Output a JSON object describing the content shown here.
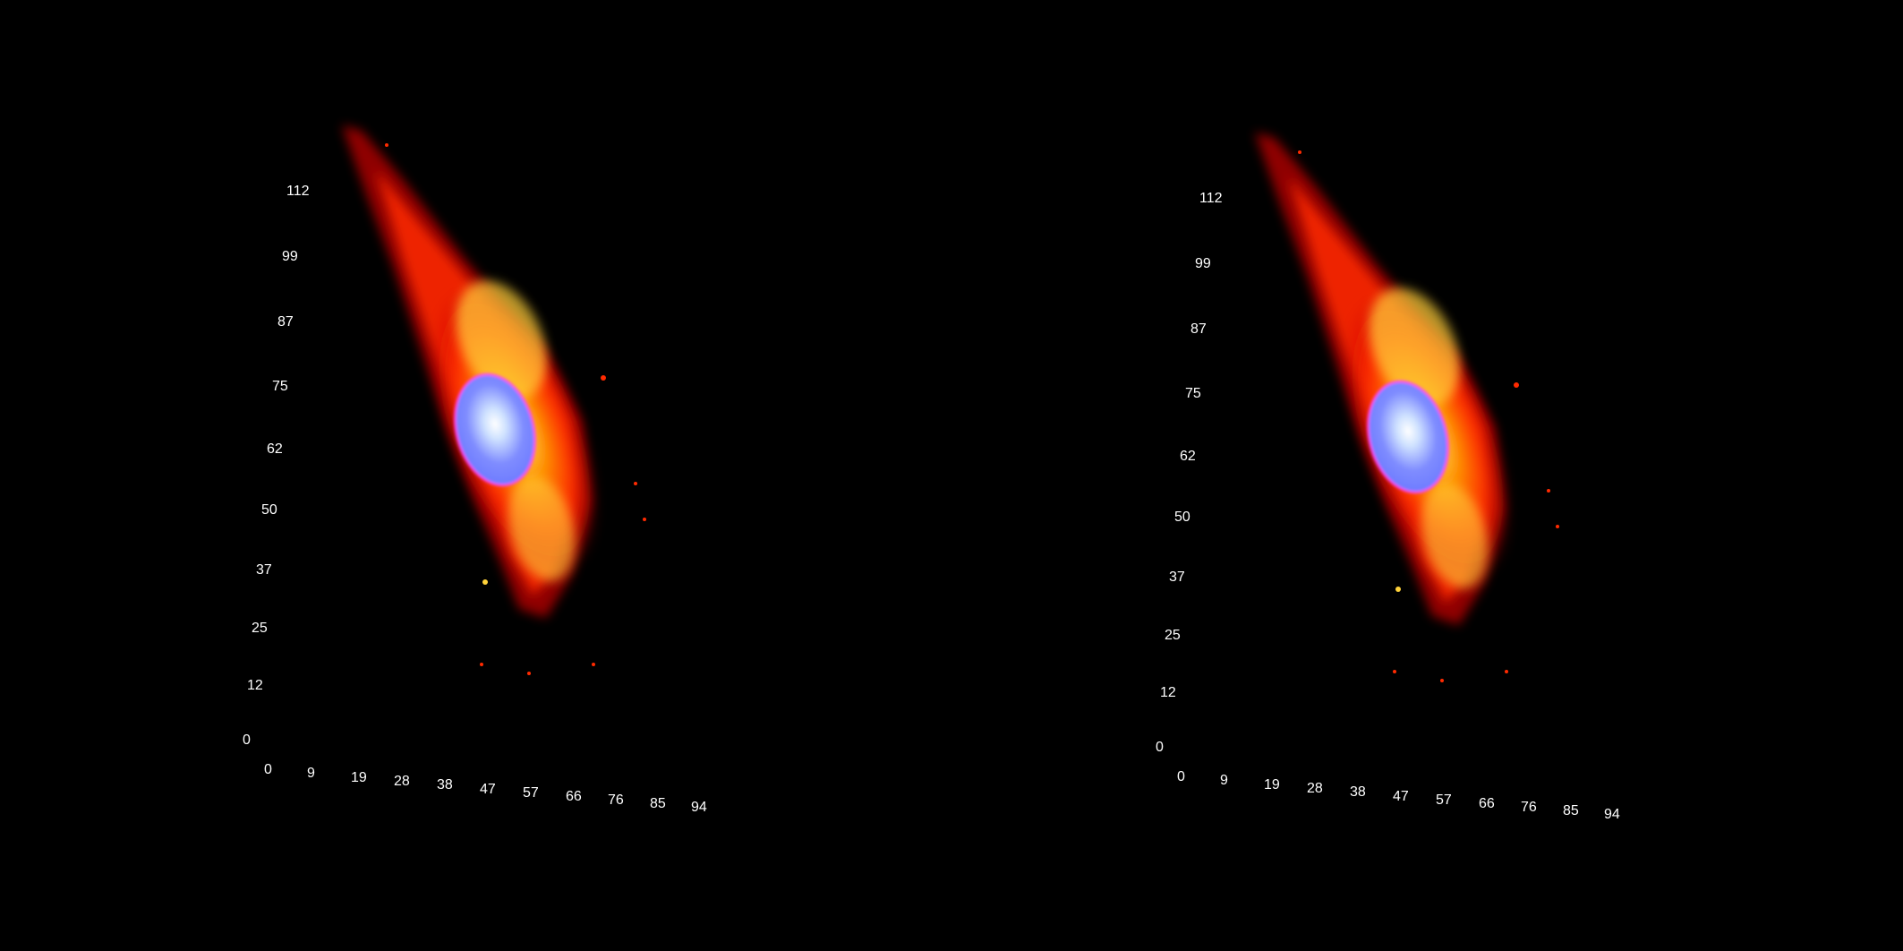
{
  "view": {
    "background": "#000000",
    "description_type": "stereo-pair-3d-render"
  },
  "colors": {
    "cytoplasm_outer": "#c00000",
    "cytoplasm_mid": "#ff2a00",
    "cytoplasm_bright": "#ff9a00",
    "cytoplasm_hot": "#fff27a",
    "nucleus_fill": "#6e7cff",
    "nucleus_core": "#e6f0ff",
    "nucleus_edge": "#ff3cff",
    "axis_label": "#ffffff"
  },
  "panels": [
    {
      "id": "left",
      "y_axis_ticks": [
        "112",
        "99",
        "87",
        "75",
        "62",
        "50",
        "37",
        "25",
        "12",
        "0"
      ],
      "x_axis_ticks": [
        "0",
        "9",
        "19",
        "28",
        "38",
        "47",
        "57",
        "66",
        "76",
        "85",
        "94"
      ]
    },
    {
      "id": "right",
      "y_axis_ticks": [
        "112",
        "99",
        "87",
        "75",
        "62",
        "50",
        "37",
        "25",
        "12",
        "0"
      ],
      "x_axis_ticks": [
        "0",
        "9",
        "19",
        "28",
        "38",
        "47",
        "57",
        "66",
        "76",
        "85",
        "94"
      ]
    }
  ]
}
